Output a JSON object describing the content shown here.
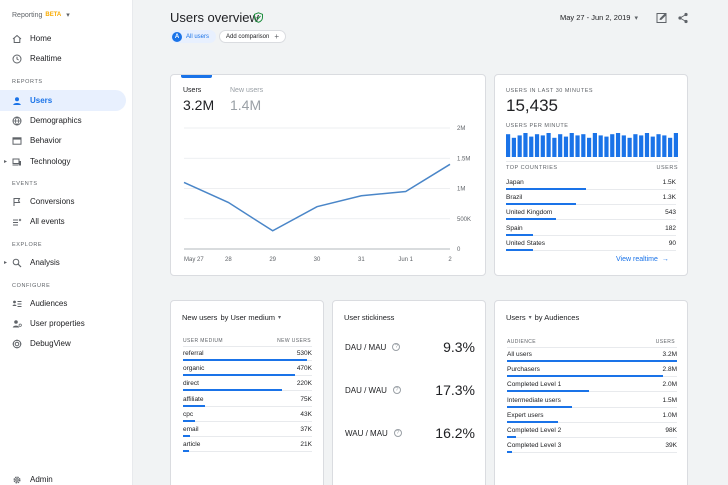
{
  "brand": {
    "name": "Reporting",
    "badge": "BETA"
  },
  "sidebar": {
    "items": [
      {
        "key": "home",
        "label": "Home",
        "icon": "home-icon"
      },
      {
        "key": "realtime",
        "label": "Realtime",
        "icon": "clock-icon"
      },
      {
        "key": "users",
        "label": "Users",
        "icon": "person-icon",
        "active": true
      },
      {
        "key": "demographics",
        "label": "Demographics",
        "icon": "globe-icon"
      },
      {
        "key": "behavior",
        "label": "Behavior",
        "icon": "window-icon"
      },
      {
        "key": "technology",
        "label": "Technology",
        "icon": "devices-icon"
      },
      {
        "key": "conversions",
        "label": "Conversions",
        "icon": "flag-icon"
      },
      {
        "key": "all-events",
        "label": "All events",
        "icon": "events-icon"
      },
      {
        "key": "analysis",
        "label": "Analysis",
        "icon": "analysis-icon"
      },
      {
        "key": "audiences",
        "label": "Audiences",
        "icon": "audiences-icon"
      },
      {
        "key": "user-properties",
        "label": "User properties",
        "icon": "user-properties-icon"
      },
      {
        "key": "debugview",
        "label": "DebugView",
        "icon": "debug-icon"
      },
      {
        "key": "admin",
        "label": "Admin",
        "icon": "gear-icon"
      }
    ],
    "sections": {
      "reports": "REPORTS",
      "events": "EVENTS",
      "explore": "EXPLORE",
      "configure": "CONFIGURE"
    }
  },
  "header": {
    "title": "Users overview",
    "chip_all": "All users",
    "chip_all_letter": "A",
    "add_comparison": "Add comparison",
    "date_range": "May 27 - Jun 2, 2019"
  },
  "overview": {
    "tabs": [
      {
        "label": "Users",
        "value": "3.2M"
      },
      {
        "label": "New users",
        "value": "1.4M"
      }
    ],
    "chart_data": {
      "type": "line",
      "x": [
        "May 27",
        "28",
        "29",
        "30",
        "31",
        "Jun 1",
        "2"
      ],
      "series": [
        {
          "values": [
            1.1,
            0.77,
            0.3,
            0.7,
            0.88,
            0.95,
            1.4
          ]
        }
      ],
      "ylim": [
        0,
        2
      ],
      "yticks": [
        "2M",
        "1.5M",
        "1M",
        "500K",
        "0"
      ],
      "ytick_values": [
        2,
        1.5,
        1,
        0.5,
        0
      ],
      "color": "#4a86c8"
    }
  },
  "realtime": {
    "title": "USERS IN LAST 30 MINUTES",
    "value": "15,435",
    "per_minute_label": "USERS PER MINUTE",
    "per_minute": [
      0.95,
      0.8,
      0.9,
      1.0,
      0.85,
      0.95,
      0.9,
      1.0,
      0.8,
      0.95,
      0.85,
      1.0,
      0.9,
      0.95,
      0.8,
      1.0,
      0.9,
      0.85,
      0.95,
      1.0,
      0.9,
      0.8,
      0.95,
      0.9,
      1.0,
      0.85,
      0.95,
      0.9,
      0.8,
      1.0
    ],
    "col_left": "TOP COUNTRIES",
    "col_right": "USERS",
    "rows": [
      {
        "name": "Japan",
        "value": "1.5K",
        "share": 1.0
      },
      {
        "name": "Brazil",
        "value": "1.3K",
        "share": 0.87
      },
      {
        "name": "United Kingdom",
        "value": "543",
        "share": 0.62
      },
      {
        "name": "Spain",
        "value": "182",
        "share": 0.34
      },
      {
        "name": "United States",
        "value": "90",
        "share": 0.34
      }
    ],
    "link": "View realtime"
  },
  "medium": {
    "title_part1": "New users",
    "title_part2": "by User medium",
    "col_left": "USER MEDIUM",
    "col_right": "NEW USERS",
    "rows": [
      {
        "name": "referral",
        "value": "530K",
        "share": 1.0
      },
      {
        "name": "organic",
        "value": "470K",
        "share": 0.9
      },
      {
        "name": "direct",
        "value": "220K",
        "share": 0.8
      },
      {
        "name": "affiliate",
        "value": "75K",
        "share": 0.18
      },
      {
        "name": "cpc",
        "value": "43K",
        "share": 0.1
      },
      {
        "name": "email",
        "value": "37K",
        "share": 0.06
      },
      {
        "name": "article",
        "value": "21K",
        "share": 0.05
      }
    ]
  },
  "stickiness": {
    "title": "User stickiness",
    "rows": [
      {
        "label": "DAU / MAU",
        "value": "9.3%"
      },
      {
        "label": "DAU / WAU",
        "value": "17.3%"
      },
      {
        "label": "WAU / MAU",
        "value": "16.2%"
      }
    ]
  },
  "audiences": {
    "title_part1": "Users",
    "title_part2": "by Audiences",
    "col_left": "AUDIENCE",
    "col_right": "USERS",
    "rows": [
      {
        "name": "All users",
        "value": "3.2M",
        "share": 1.0
      },
      {
        "name": "Purchasers",
        "value": "2.8M",
        "share": 0.92
      },
      {
        "name": "Completed Level 1",
        "value": "2.0M",
        "share": 0.48
      },
      {
        "name": "Intermediate users",
        "value": "1.5M",
        "share": 0.38
      },
      {
        "name": "Expert users",
        "value": "1.0M",
        "share": 0.3
      },
      {
        "name": "Completed Level 2",
        "value": "98K",
        "share": 0.05
      },
      {
        "name": "Completed Level 3",
        "value": "39K",
        "share": 0.03
      }
    ]
  },
  "colors": {
    "accent": "#1a73e8",
    "bar": "#1a73e8",
    "line": "#4a86c8"
  }
}
